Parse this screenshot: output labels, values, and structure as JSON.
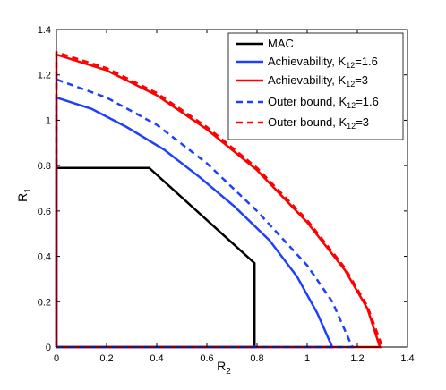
{
  "chart_data": {
    "type": "line",
    "xlabel": {
      "main": "R",
      "sub": "2"
    },
    "ylabel": {
      "main": "R",
      "sub": "1"
    },
    "xlim": [
      0,
      1.4
    ],
    "ylim": [
      0,
      1.4
    ],
    "xticks": [
      0,
      0.2,
      0.4,
      0.6,
      0.8,
      1,
      1.2,
      1.4
    ],
    "yticks": [
      0,
      0.2,
      0.4,
      0.6,
      0.8,
      1,
      1.2,
      1.4
    ],
    "xtick_labels": [
      "0",
      "0.2",
      "0.4",
      "0.6",
      "0.8",
      "1",
      "1.2",
      "1.4"
    ],
    "ytick_labels": [
      "0",
      "0.2",
      "0.4",
      "0.6",
      "0.8",
      "1",
      "1.2",
      "1.4"
    ],
    "grid": false,
    "legend_position": "top-right",
    "series": [
      {
        "name": "MAC",
        "legend": {
          "main": "MAC",
          "sub": "",
          "tail": ""
        },
        "color": "#000000",
        "dash": "solid",
        "x": [
          0,
          0,
          0.37,
          0.79,
          0.79,
          0
        ],
        "y": [
          0,
          0.79,
          0.79,
          0.37,
          0,
          0
        ]
      },
      {
        "name": "Achievability, K12=1.6",
        "legend": {
          "main": "Achievability, K",
          "sub": "12",
          "tail": "=1.6"
        },
        "color": "#1f3fff",
        "dash": "solid",
        "x": [
          0,
          0,
          0.14,
          0.28,
          0.43,
          0.57,
          0.71,
          0.85,
          0.96,
          1.04,
          1.1,
          1.1,
          0
        ],
        "y": [
          0,
          1.1,
          1.05,
          0.97,
          0.87,
          0.75,
          0.62,
          0.47,
          0.31,
          0.15,
          0,
          0,
          0
        ]
      },
      {
        "name": "Achievability, K12=3",
        "legend": {
          "main": "Achievability, K",
          "sub": "12",
          "tail": "=3"
        },
        "color": "#ff0000",
        "dash": "solid",
        "x": [
          0,
          0,
          0.2,
          0.4,
          0.6,
          0.8,
          1.0,
          1.15,
          1.24,
          1.29,
          1.29,
          0
        ],
        "y": [
          0,
          1.29,
          1.22,
          1.11,
          0.96,
          0.78,
          0.55,
          0.34,
          0.17,
          0,
          0,
          0
        ]
      },
      {
        "name": "Outer bound, K12=1.6",
        "legend": {
          "main": "Outer bound, K",
          "sub": "12",
          "tail": "=1.6"
        },
        "color": "#1f3fff",
        "dash": "dashed",
        "x": [
          0,
          0,
          0.2,
          0.4,
          0.6,
          0.8,
          1.0,
          1.1,
          1.18,
          1.18,
          0
        ],
        "y": [
          0,
          1.18,
          1.1,
          0.98,
          0.81,
          0.6,
          0.36,
          0.2,
          0,
          0,
          0
        ]
      },
      {
        "name": "Outer bound, K12=3",
        "legend": {
          "main": "Outer bound, K",
          "sub": "12",
          "tail": "=3"
        },
        "color": "#ff0000",
        "dash": "dashed",
        "x": [
          0,
          0,
          0.2,
          0.4,
          0.6,
          0.8,
          1.0,
          1.15,
          1.24,
          1.3
        ],
        "y": [
          0,
          1.3,
          1.23,
          1.12,
          0.97,
          0.79,
          0.56,
          0.35,
          0.18,
          0
        ]
      }
    ]
  }
}
